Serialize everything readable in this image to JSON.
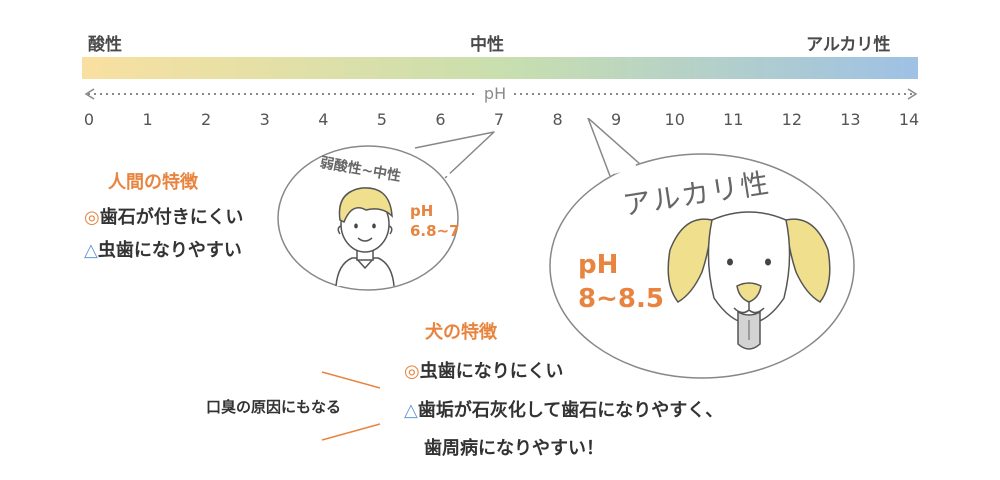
{
  "scale": {
    "acid_label": "酸性",
    "neutral_label": "中性",
    "alkaline_label": "アルカリ性",
    "axis_label": "pH",
    "ticks": [
      "0",
      "1",
      "2",
      "3",
      "4",
      "5",
      "6",
      "7",
      "8",
      "9",
      "10",
      "11",
      "12",
      "13",
      "14"
    ],
    "gradient_colors": [
      "#f9e0a0",
      "#c9dfae",
      "#9ec1e5"
    ]
  },
  "human": {
    "bubble_title": "弱酸性~中性",
    "ph_label": "pH",
    "ph_value": "6.8~7",
    "ph_position": 7,
    "features_title": "人間の特徴",
    "good_symbol": "◎",
    "good_text": "歯石が付きにくい",
    "bad_symbol": "△",
    "bad_text": "虫歯になりやすい"
  },
  "dog": {
    "bubble_title": "アルカリ性",
    "ph_label": "pH",
    "ph_value": "8~8.5",
    "ph_position": 8.5,
    "features_title": "犬の特徴",
    "good_symbol": "◎",
    "good_text": "虫歯になりにくい",
    "bad_symbol": "△",
    "bad_text_line1": "歯垢が石灰化して歯石になりやすく、",
    "bad_text_line2": "歯周病になりやすい！",
    "note": "口臭の原因にもなる"
  },
  "colors": {
    "accent_orange": "#e8843f",
    "triangle_blue": "#6a97cc",
    "illustration_yellow": "#f0df8c"
  }
}
